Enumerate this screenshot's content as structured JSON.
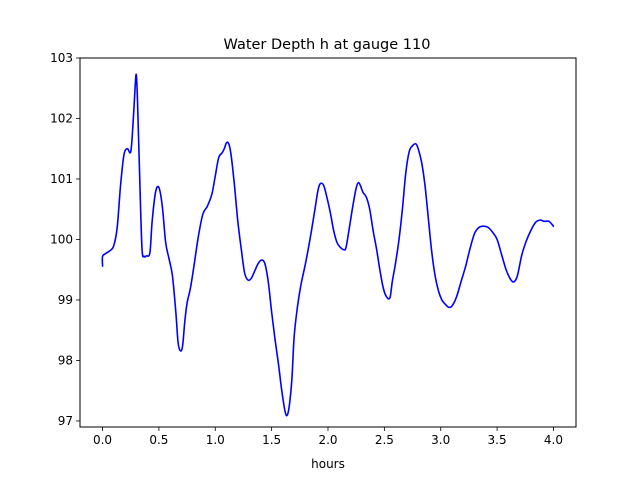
{
  "chart_data": {
    "type": "line",
    "title": "Water Depth h at gauge 110",
    "xlabel": "hours",
    "ylabel": "",
    "xlim": [
      -0.2,
      4.2
    ],
    "ylim": [
      96.9,
      103.0
    ],
    "xticks": [
      0.0,
      0.5,
      1.0,
      1.5,
      2.0,
      2.5,
      3.0,
      3.5,
      4.0
    ],
    "xtick_labels": [
      "0.0",
      "0.5",
      "1.0",
      "1.5",
      "2.0",
      "2.5",
      "3.0",
      "3.5",
      "4.0"
    ],
    "yticks": [
      97,
      98,
      99,
      100,
      101,
      102,
      103
    ],
    "ytick_labels": [
      "97",
      "98",
      "99",
      "100",
      "101",
      "102",
      "103"
    ],
    "grid": false,
    "series": [
      {
        "color": "#0000ff",
        "x": [
          0.0,
          0.0,
          0.03,
          0.07,
          0.1,
          0.13,
          0.16,
          0.19,
          0.22,
          0.25,
          0.27,
          0.29,
          0.3,
          0.31,
          0.33,
          0.35,
          0.37,
          0.39,
          0.42,
          0.44,
          0.47,
          0.5,
          0.53,
          0.56,
          0.59,
          0.62,
          0.65,
          0.67,
          0.69,
          0.71,
          0.73,
          0.75,
          0.78,
          0.81,
          0.85,
          0.89,
          0.93,
          0.97,
          1.0,
          1.03,
          1.06,
          1.08,
          1.1,
          1.12,
          1.14,
          1.17,
          1.2,
          1.23,
          1.26,
          1.29,
          1.32,
          1.35,
          1.38,
          1.41,
          1.44,
          1.47,
          1.5,
          1.53,
          1.56,
          1.59,
          1.62,
          1.64,
          1.66,
          1.68,
          1.7,
          1.73,
          1.76,
          1.8,
          1.84,
          1.88,
          1.91,
          1.93,
          1.96,
          1.99,
          2.02,
          2.05,
          2.08,
          2.11,
          2.14,
          2.16,
          2.19,
          2.22,
          2.25,
          2.27,
          2.29,
          2.31,
          2.34,
          2.37,
          2.4,
          2.43,
          2.46,
          2.49,
          2.52,
          2.55,
          2.57,
          2.6,
          2.63,
          2.66,
          2.69,
          2.72,
          2.75,
          2.78,
          2.8,
          2.83,
          2.86,
          2.89,
          2.92,
          2.95,
          2.98,
          3.01,
          3.04,
          3.07,
          3.1,
          3.14,
          3.18,
          3.22,
          3.26,
          3.3,
          3.34,
          3.38,
          3.42,
          3.46,
          3.5,
          3.54,
          3.58,
          3.62,
          3.65,
          3.68,
          3.72,
          3.76,
          3.8,
          3.84,
          3.88,
          3.92,
          3.96,
          4.0
        ],
        "values": [
          99.56,
          99.72,
          99.77,
          99.82,
          99.9,
          100.2,
          100.9,
          101.4,
          101.5,
          101.45,
          101.9,
          102.55,
          102.72,
          102.3,
          101.0,
          99.85,
          99.72,
          99.73,
          99.78,
          100.3,
          100.78,
          100.86,
          100.55,
          99.95,
          99.68,
          99.4,
          98.8,
          98.3,
          98.16,
          98.24,
          98.65,
          98.95,
          99.2,
          99.55,
          100.05,
          100.42,
          100.55,
          100.75,
          101.05,
          101.35,
          101.43,
          101.5,
          101.6,
          101.58,
          101.4,
          100.9,
          100.3,
          99.85,
          99.45,
          99.33,
          99.36,
          99.48,
          99.6,
          99.66,
          99.6,
          99.3,
          98.8,
          98.35,
          97.95,
          97.5,
          97.15,
          97.1,
          97.3,
          97.7,
          98.4,
          98.9,
          99.25,
          99.6,
          100.0,
          100.45,
          100.8,
          100.92,
          100.9,
          100.7,
          100.45,
          100.15,
          99.95,
          99.87,
          99.83,
          99.87,
          100.2,
          100.55,
          100.85,
          100.94,
          100.88,
          100.78,
          100.7,
          100.5,
          100.15,
          99.85,
          99.5,
          99.2,
          99.05,
          99.04,
          99.3,
          99.62,
          100.0,
          100.5,
          101.1,
          101.45,
          101.55,
          101.58,
          101.5,
          101.28,
          100.9,
          100.35,
          99.8,
          99.4,
          99.15,
          99.0,
          98.93,
          98.88,
          98.9,
          99.05,
          99.3,
          99.55,
          99.85,
          100.1,
          100.2,
          100.22,
          100.2,
          100.12,
          100.0,
          99.75,
          99.5,
          99.34,
          99.3,
          99.4,
          99.75,
          99.98,
          100.15,
          100.28,
          100.32,
          100.3,
          100.3,
          100.22
        ]
      }
    ]
  }
}
